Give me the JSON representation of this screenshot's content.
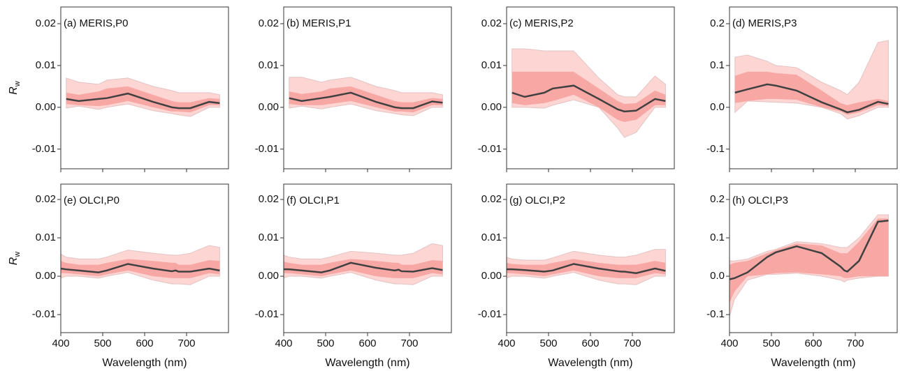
{
  "chart_data": [
    {
      "type": "line",
      "title": "(a) MERIS,P0",
      "ylabel": {
        "main": "R",
        "sub": "w"
      },
      "x": [
        413,
        443,
        490,
        510,
        560,
        620,
        665,
        681,
        709,
        754,
        779
      ],
      "bands": [
        {
          "color": "#fdd5d3",
          "lower": [
            -0.0002,
            0.0003,
            -0.0005,
            0.0,
            0.0008,
            -0.0008,
            -0.0015,
            -0.0018,
            -0.0022,
            0.0,
            0.0
          ],
          "upper": [
            0.007,
            0.006,
            0.0055,
            0.0065,
            0.007,
            0.005,
            0.004,
            0.0035,
            0.0035,
            0.0035,
            0.003
          ]
        },
        {
          "color": "#f7a8a5",
          "lower": [
            0.0008,
            0.0005,
            0.0003,
            0.0005,
            0.0015,
            0.0,
            -0.001,
            -0.001,
            -0.0012,
            0.0005,
            0.0005
          ],
          "upper": [
            0.0035,
            0.003,
            0.0038,
            0.0045,
            0.005,
            0.003,
            0.0015,
            0.0012,
            0.0012,
            0.0022,
            0.002
          ]
        }
      ],
      "series": [
        {
          "color": "#404040",
          "values": [
            0.002,
            0.0015,
            0.002,
            0.0022,
            0.0033,
            0.0013,
            0.0,
            -0.0002,
            -0.0002,
            0.0013,
            0.001
          ]
        }
      ],
      "xlim": [
        400,
        800
      ],
      "xticks": [
        400,
        500,
        600,
        700
      ],
      "ylim": [
        -0.0147,
        0.024
      ],
      "yticks": [
        0.02,
        0.01,
        {
          "value": 0,
          "label": "0.00"
        },
        -0.01
      ]
    },
    {
      "type": "line",
      "title": "(b) MERIS,P1",
      "x": [
        413,
        443,
        490,
        510,
        560,
        620,
        665,
        681,
        709,
        754,
        779
      ],
      "bands": [
        {
          "color": "#fdd5d3",
          "lower": [
            -0.0002,
            0.0003,
            -0.0004,
            0.0,
            0.0008,
            -0.0008,
            -0.0015,
            -0.0018,
            -0.002,
            0.0,
            0.0
          ],
          "upper": [
            0.0072,
            0.0072,
            0.006,
            0.0065,
            0.0072,
            0.005,
            0.004,
            0.0035,
            0.0035,
            0.0035,
            0.003
          ]
        },
        {
          "color": "#f7a8a5",
          "lower": [
            0.0008,
            0.0005,
            0.0005,
            0.0008,
            0.0015,
            0.0,
            -0.001,
            -0.001,
            -0.0012,
            0.0005,
            0.0005
          ],
          "upper": [
            0.0038,
            0.0032,
            0.0038,
            0.0045,
            0.005,
            0.003,
            0.0015,
            0.0012,
            0.0012,
            0.0022,
            0.002
          ]
        }
      ],
      "series": [
        {
          "color": "#404040",
          "values": [
            0.0022,
            0.0015,
            0.0022,
            0.0025,
            0.0035,
            0.0013,
            0.0,
            -0.0002,
            -0.0002,
            0.0014,
            0.0011
          ]
        }
      ],
      "xlim": [
        400,
        800
      ],
      "xticks": [
        400,
        500,
        600,
        700
      ],
      "ylim": [
        -0.0147,
        0.024
      ],
      "yticks": [
        0.02,
        0.01,
        {
          "value": 0,
          "label": "0.00"
        },
        -0.01
      ]
    },
    {
      "type": "line",
      "title": "(c) MERIS,P2",
      "x": [
        413,
        443,
        490,
        510,
        560,
        620,
        665,
        681,
        709,
        754,
        779
      ],
      "bands": [
        {
          "color": "#fdd5d3",
          "lower": [
            0.0,
            0.0,
            -0.0002,
            0.0005,
            0.0018,
            0.0,
            -0.005,
            -0.0072,
            -0.006,
            0.0,
            0.0
          ],
          "upper": [
            0.014,
            0.014,
            0.0135,
            0.0135,
            0.0135,
            0.007,
            0.003,
            0.0025,
            0.0025,
            0.0075,
            0.0055
          ]
        },
        {
          "color": "#f7a8a5",
          "lower": [
            0.001,
            0.0005,
            0.001,
            0.0015,
            0.003,
            0.0,
            -0.003,
            -0.0035,
            -0.003,
            0.0005,
            0.0005
          ],
          "upper": [
            0.0085,
            0.0085,
            0.0085,
            0.0085,
            0.0085,
            0.0045,
            0.0015,
            0.0008,
            0.001,
            0.004,
            0.003
          ]
        }
      ],
      "series": [
        {
          "color": "#404040",
          "values": [
            0.0035,
            0.0025,
            0.0035,
            0.0045,
            0.0052,
            0.002,
            -0.0005,
            -0.001,
            -0.0008,
            0.002,
            0.0015
          ]
        }
      ],
      "xlim": [
        400,
        800
      ],
      "xticks": [
        400,
        500,
        600,
        700
      ],
      "ylim": [
        -0.0147,
        0.024
      ],
      "yticks": [
        0.02,
        0.01,
        {
          "value": 0,
          "label": "0.00"
        },
        -0.01
      ]
    },
    {
      "type": "line",
      "title": "(d) MERIS,P3",
      "x": [
        413,
        443,
        490,
        510,
        560,
        620,
        665,
        681,
        709,
        754,
        779
      ],
      "bands": [
        {
          "color": "#fdd5d3",
          "lower": [
            -0.012,
            0.015,
            0.013,
            0.012,
            0.01,
            0.0,
            -0.015,
            -0.028,
            -0.02,
            0.0,
            0.0
          ],
          "upper": [
            0.12,
            0.125,
            0.11,
            0.1,
            0.095,
            0.06,
            0.04,
            0.03,
            0.06,
            0.155,
            0.16
          ]
        },
        {
          "color": "#f7a8a5",
          "lower": [
            0.01,
            0.015,
            0.02,
            0.02,
            0.018,
            0.0,
            -0.01,
            -0.018,
            -0.012,
            0.005,
            0.003
          ],
          "upper": [
            0.075,
            0.085,
            0.085,
            0.082,
            0.078,
            0.04,
            0.01,
            0.005,
            0.012,
            0.02,
            0.015
          ]
        }
      ],
      "series": [
        {
          "color": "#404040",
          "values": [
            0.035,
            0.043,
            0.055,
            0.052,
            0.04,
            0.012,
            -0.005,
            -0.012,
            -0.006,
            0.013,
            0.008
          ]
        }
      ],
      "xlim": [
        400,
        800
      ],
      "xticks": [
        400,
        500,
        600,
        700
      ],
      "ylim": [
        -0.147,
        0.24
      ],
      "yticks": [
        0.2,
        0.1,
        {
          "value": 0,
          "label": "0.0"
        },
        -0.1
      ]
    },
    {
      "type": "line",
      "title": "(e) OLCI,P0",
      "ylabel": {
        "main": "R",
        "sub": "w"
      },
      "xlabel": "Wavelength (nm)",
      "x": [
        400,
        412,
        443,
        490,
        510,
        560,
        620,
        665,
        674,
        681,
        709,
        754,
        779
      ],
      "bands": [
        {
          "color": "#fdd5d3",
          "lower": [
            -0.0005,
            0.0,
            0.0,
            -0.0005,
            0.0,
            0.001,
            -0.001,
            -0.002,
            -0.002,
            -0.002,
            -0.0022,
            0.0,
            0.0
          ],
          "upper": [
            0.0058,
            0.005,
            0.0045,
            0.0045,
            0.005,
            0.0068,
            0.006,
            0.0055,
            0.0055,
            0.0055,
            0.006,
            0.008,
            0.0075
          ]
        },
        {
          "color": "#f7a8a5",
          "lower": [
            0.0008,
            0.0008,
            0.0005,
            0.0,
            0.0005,
            0.0015,
            0.0,
            -0.0005,
            -0.0005,
            -0.0005,
            -0.0005,
            0.0008,
            0.0005
          ],
          "upper": [
            0.004,
            0.0035,
            0.003,
            0.003,
            0.0035,
            0.0045,
            0.004,
            0.0035,
            0.0035,
            0.003,
            0.003,
            0.0042,
            0.004
          ]
        }
      ],
      "series": [
        {
          "color": "#404040",
          "values": [
            0.002,
            0.0018,
            0.0015,
            0.001,
            0.0015,
            0.0032,
            0.002,
            0.0013,
            0.0015,
            0.0012,
            0.0012,
            0.002,
            0.0015
          ]
        }
      ],
      "xlim": [
        400,
        800
      ],
      "xticks": [
        400,
        500,
        600,
        700
      ],
      "ylim": [
        -0.0147,
        0.024
      ],
      "yticks": [
        0.02,
        0.01,
        {
          "value": 0,
          "label": "0.00"
        },
        -0.01
      ]
    },
    {
      "type": "line",
      "title": "(f) OLCI,P1",
      "xlabel": "Wavelength (nm)",
      "x": [
        400,
        412,
        443,
        490,
        510,
        560,
        620,
        665,
        674,
        681,
        709,
        754,
        779
      ],
      "bands": [
        {
          "color": "#fdd5d3",
          "lower": [
            -0.0005,
            0.0,
            0.0,
            -0.0005,
            0.0,
            0.001,
            -0.001,
            -0.002,
            -0.002,
            -0.002,
            -0.0022,
            0.0,
            0.0
          ],
          "upper": [
            0.0055,
            0.005,
            0.0045,
            0.0045,
            0.005,
            0.0065,
            0.006,
            0.0055,
            0.0055,
            0.0055,
            0.006,
            0.0085,
            0.008
          ]
        },
        {
          "color": "#f7a8a5",
          "lower": [
            0.0008,
            0.0008,
            0.0005,
            0.0,
            0.0005,
            0.0015,
            0.0,
            -0.0005,
            -0.0005,
            -0.0005,
            -0.0005,
            0.0008,
            0.0005
          ],
          "upper": [
            0.0038,
            0.0035,
            0.003,
            0.003,
            0.0035,
            0.0045,
            0.004,
            0.0035,
            0.0035,
            0.003,
            0.003,
            0.0042,
            0.004
          ]
        }
      ],
      "series": [
        {
          "color": "#404040",
          "values": [
            0.0018,
            0.0018,
            0.0015,
            0.001,
            0.0015,
            0.0035,
            0.0022,
            0.0015,
            0.0017,
            0.0013,
            0.0012,
            0.0021,
            0.0016
          ]
        }
      ],
      "xlim": [
        400,
        800
      ],
      "xticks": [
        400,
        500,
        600,
        700
      ],
      "ylim": [
        -0.0147,
        0.024
      ],
      "yticks": [
        0.02,
        0.01,
        {
          "value": 0,
          "label": "0.00"
        },
        -0.01
      ]
    },
    {
      "type": "line",
      "title": "(g) OLCI,P2",
      "xlabel": "Wavelength (nm)",
      "x": [
        400,
        412,
        443,
        490,
        510,
        560,
        620,
        665,
        674,
        681,
        709,
        754,
        779
      ],
      "bands": [
        {
          "color": "#fdd5d3",
          "lower": [
            -0.0005,
            0.0,
            0.0,
            -0.0005,
            0.0,
            0.001,
            -0.001,
            -0.002,
            -0.002,
            -0.002,
            -0.0022,
            0.0,
            0.0
          ],
          "upper": [
            0.005,
            0.0045,
            0.0042,
            0.0042,
            0.0048,
            0.0065,
            0.0055,
            0.005,
            0.005,
            0.005,
            0.0055,
            0.007,
            0.007
          ]
        },
        {
          "color": "#f7a8a5",
          "lower": [
            0.0008,
            0.0008,
            0.0005,
            0.0,
            0.0005,
            0.0015,
            0.0,
            -0.0005,
            -0.0005,
            -0.0005,
            -0.0005,
            0.0008,
            0.0005
          ],
          "upper": [
            0.0035,
            0.0032,
            0.003,
            0.003,
            0.0035,
            0.0045,
            0.0035,
            0.003,
            0.003,
            0.003,
            0.003,
            0.004,
            0.0035
          ]
        }
      ],
      "series": [
        {
          "color": "#404040",
          "values": [
            0.0018,
            0.0018,
            0.0016,
            0.0012,
            0.0015,
            0.0032,
            0.002,
            0.0013,
            0.0012,
            0.0012,
            0.0008,
            0.002,
            0.0014
          ]
        }
      ],
      "xlim": [
        400,
        800
      ],
      "xticks": [
        400,
        500,
        600,
        700
      ],
      "ylim": [
        -0.0147,
        0.024
      ],
      "yticks": [
        0.02,
        0.01,
        {
          "value": 0,
          "label": "0.00"
        },
        -0.01
      ]
    },
    {
      "type": "line",
      "title": "(h) OLCI,P3",
      "xlabel": "Wavelength (nm)",
      "x": [
        400,
        412,
        443,
        490,
        510,
        560,
        620,
        665,
        674,
        681,
        709,
        754,
        779
      ],
      "bands": [
        {
          "color": "#fdd5d3",
          "lower": [
            -0.105,
            -0.06,
            -0.01,
            0.005,
            0.005,
            0.008,
            0.0,
            -0.01,
            -0.015,
            -0.01,
            -0.005,
            0.0,
            0.0
          ],
          "upper": [
            0.04,
            0.04,
            0.045,
            0.065,
            0.07,
            0.09,
            0.085,
            0.075,
            0.075,
            0.075,
            0.1,
            0.16,
            0.16
          ]
        },
        {
          "color": "#f7a8a5",
          "lower": [
            -0.07,
            -0.04,
            0.0,
            0.005,
            0.008,
            0.01,
            0.005,
            0.0,
            -0.005,
            -0.005,
            0.0,
            0.0,
            0.0
          ],
          "upper": [
            0.03,
            0.035,
            0.04,
            0.06,
            0.068,
            0.085,
            0.08,
            0.06,
            0.06,
            0.06,
            0.09,
            0.15,
            0.15
          ]
        }
      ],
      "series": [
        {
          "color": "#404040",
          "values": [
            -0.008,
            -0.005,
            0.01,
            0.05,
            0.062,
            0.078,
            0.06,
            0.025,
            0.015,
            0.012,
            0.04,
            0.142,
            0.145
          ]
        }
      ],
      "xlim": [
        400,
        800
      ],
      "xticks": [
        400,
        500,
        600,
        700
      ],
      "ylim": [
        -0.147,
        0.24
      ],
      "yticks": [
        0.2,
        0.1,
        {
          "value": 0,
          "label": "0.0"
        },
        -0.1
      ]
    }
  ]
}
